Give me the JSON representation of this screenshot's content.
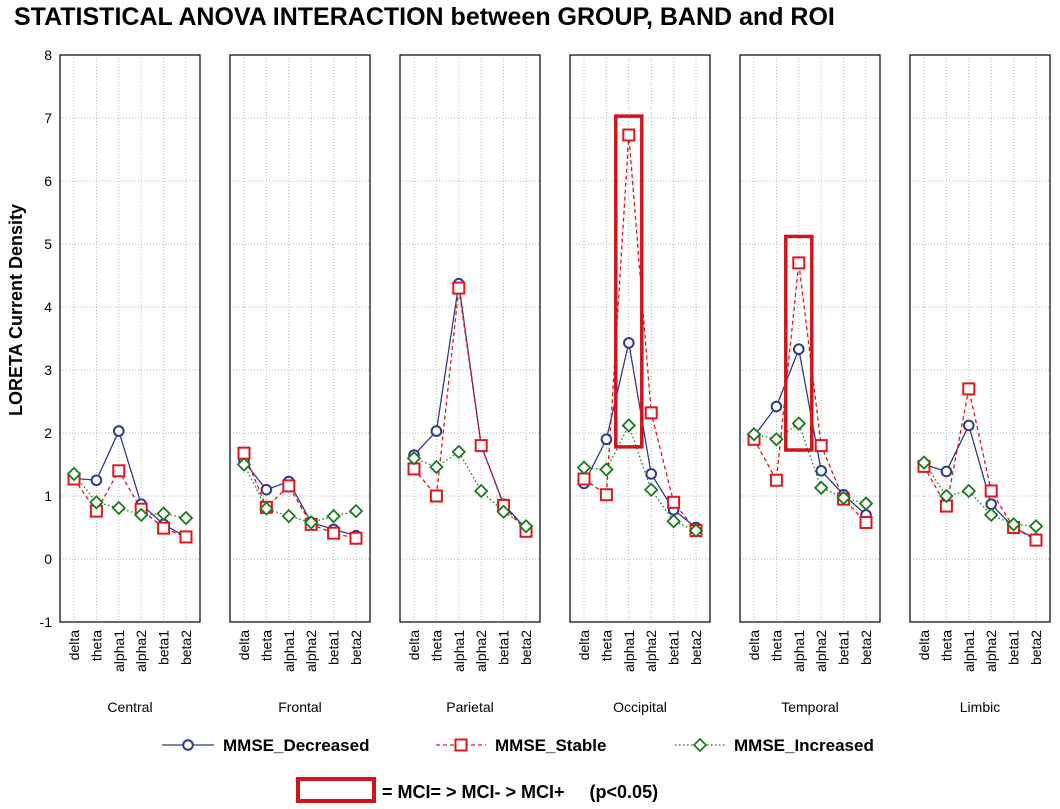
{
  "chart_data": {
    "type": "line",
    "title": "STATISTICAL ANOVA INTERACTION between GROUP, BAND and ROI",
    "ylabel": "LORETA Current Density",
    "xlabel": "",
    "ylim": [
      -1,
      8
    ],
    "yticks": [
      "8",
      "7",
      "6",
      "5",
      "4",
      "3",
      "2",
      "1",
      "0",
      "-1"
    ],
    "grid": true,
    "categories": [
      "delta",
      "theta",
      "alpha1",
      "alpha2",
      "beta1",
      "beta2"
    ],
    "panels": [
      {
        "name": "Central",
        "series": [
          {
            "name": "MMSE_Decreased",
            "values": [
              1.28,
              1.25,
              2.03,
              0.87,
              0.55,
              0.35
            ]
          },
          {
            "name": "MMSE_Stable",
            "values": [
              1.27,
              0.76,
              1.4,
              0.79,
              0.49,
              0.35
            ]
          },
          {
            "name": "MMSE_Increased",
            "values": [
              1.35,
              0.9,
              0.81,
              0.7,
              0.72,
              0.65
            ]
          }
        ]
      },
      {
        "name": "Frontal",
        "series": [
          {
            "name": "MMSE_Decreased",
            "values": [
              1.55,
              1.1,
              1.23,
              0.58,
              0.47,
              0.37
            ]
          },
          {
            "name": "MMSE_Stable",
            "values": [
              1.68,
              0.82,
              1.16,
              0.55,
              0.41,
              0.33
            ]
          },
          {
            "name": "MMSE_Increased",
            "values": [
              1.5,
              0.8,
              0.68,
              0.58,
              0.68,
              0.76
            ]
          }
        ]
      },
      {
        "name": "Parietal",
        "series": [
          {
            "name": "MMSE_Decreased",
            "values": [
              1.65,
              2.03,
              4.37,
              1.8,
              0.87,
              0.48
            ]
          },
          {
            "name": "MMSE_Stable",
            "values": [
              1.43,
              1.0,
              4.3,
              1.8,
              0.85,
              0.44
            ]
          },
          {
            "name": "MMSE_Increased",
            "values": [
              1.6,
              1.46,
              1.7,
              1.08,
              0.75,
              0.52
            ]
          }
        ]
      },
      {
        "name": "Occipital",
        "series": [
          {
            "name": "MMSE_Decreased",
            "values": [
              1.2,
              1.9,
              3.43,
              1.35,
              0.78,
              0.5
            ]
          },
          {
            "name": "MMSE_Stable",
            "values": [
              1.27,
              1.02,
              6.73,
              2.32,
              0.9,
              0.45
            ]
          },
          {
            "name": "MMSE_Increased",
            "values": [
              1.45,
              1.42,
              2.12,
              1.1,
              0.6,
              0.45
            ]
          }
        ]
      },
      {
        "name": "Temporal",
        "series": [
          {
            "name": "MMSE_Decreased",
            "values": [
              1.95,
              2.42,
              3.33,
              1.4,
              1.02,
              0.7
            ]
          },
          {
            "name": "MMSE_Stable",
            "values": [
              1.9,
              1.25,
              4.7,
              1.8,
              0.95,
              0.58
            ]
          },
          {
            "name": "MMSE_Increased",
            "values": [
              1.98,
              1.9,
              2.15,
              1.13,
              0.97,
              0.88
            ]
          }
        ]
      },
      {
        "name": "Limbic",
        "series": [
          {
            "name": "MMSE_Decreased",
            "values": [
              1.5,
              1.39,
              2.12,
              0.87,
              0.5,
              0.32
            ]
          },
          {
            "name": "MMSE_Stable",
            "values": [
              1.47,
              0.84,
              2.7,
              1.08,
              0.5,
              0.3
            ]
          },
          {
            "name": "MMSE_Increased",
            "values": [
              1.53,
              1.0,
              1.08,
              0.7,
              0.55,
              0.52
            ]
          }
        ]
      }
    ],
    "highlights": [
      {
        "panel": "Occipital",
        "category": "alpha1",
        "y_range": [
          1.78,
          7.03
        ]
      },
      {
        "panel": "Temporal",
        "category": "alpha1",
        "y_range": [
          1.73,
          5.12
        ]
      }
    ],
    "legend": {
      "placement": "bottom",
      "entries": [
        "MMSE_Decreased",
        "MMSE_Stable",
        "MMSE_Increased"
      ]
    },
    "annotation": "= MCI= > MCI- > MCI+     (p<0.05)",
    "colors": {
      "MMSE_Decreased": "#2e3a8c",
      "MMSE_Stable": "#e0161e",
      "MMSE_Increased": "#1a7a1a",
      "highlight": "#d0141c",
      "grid": "#b4b4b4"
    },
    "markers": {
      "MMSE_Decreased": "circle",
      "MMSE_Stable": "square",
      "MMSE_Increased": "diamond"
    }
  }
}
